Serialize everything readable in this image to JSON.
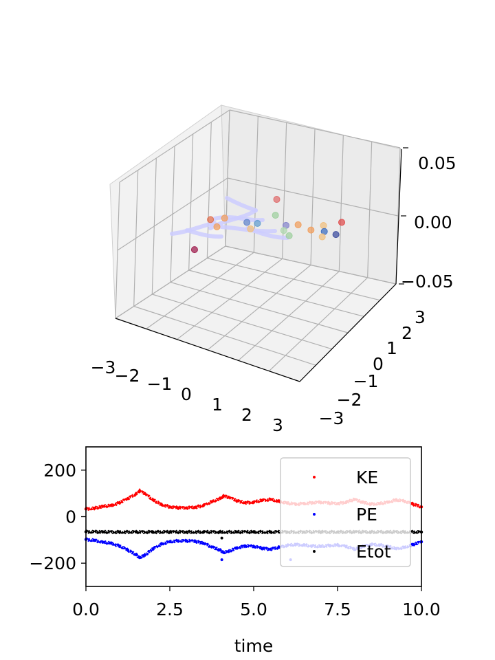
{
  "chart_data": [
    {
      "type": "scatter",
      "projection": "3d",
      "xlim": [
        -3,
        3
      ],
      "ylim": [
        -3,
        3
      ],
      "zlim": [
        -0.05,
        0.05
      ],
      "x_ticks": [
        "−3",
        "−2",
        "−1",
        "0",
        "1",
        "2",
        "3"
      ],
      "y_ticks": [
        "−3",
        "−2",
        "−1",
        "0",
        "1",
        "2",
        "3"
      ],
      "z_ticks": [
        "−0.05",
        "0.00",
        "0.05"
      ],
      "grid": true,
      "particles": [
        {
          "x": -1.9,
          "y": 0.3,
          "z": 0.0,
          "color": "#e07050"
        },
        {
          "x": -1.6,
          "y": 0.6,
          "z": 0.0,
          "color": "#f0a060"
        },
        {
          "x": -1.5,
          "y": 0.0,
          "z": 0.0,
          "color": "#f0a060"
        },
        {
          "x": -0.9,
          "y": 0.7,
          "z": 0.0,
          "color": "#6688cc"
        },
        {
          "x": -0.6,
          "y": 0.8,
          "z": 0.0,
          "color": "#66a0d0"
        },
        {
          "x": -0.6,
          "y": 0.4,
          "z": 0.0,
          "color": "#f0c080"
        },
        {
          "x": -0.9,
          "y": 2.4,
          "z": 0.0,
          "color": "#e07070"
        },
        {
          "x": -0.4,
          "y": 1.5,
          "z": 0.0,
          "color": "#a0d0a0"
        },
        {
          "x": 0.2,
          "y": 1.1,
          "z": 0.0,
          "color": "#8888cc"
        },
        {
          "x": 0.5,
          "y": 1.3,
          "z": 0.0,
          "color": "#f0a060"
        },
        {
          "x": 0.3,
          "y": 0.8,
          "z": 0.0,
          "color": "#b0d8b0"
        },
        {
          "x": 0.6,
          "y": 0.6,
          "z": 0.0,
          "color": "#a0d0a0"
        },
        {
          "x": 1.0,
          "y": 1.2,
          "z": 0.0,
          "color": "#f0a060"
        },
        {
          "x": 1.2,
          "y": 1.6,
          "z": 0.0,
          "color": "#f0c080"
        },
        {
          "x": 1.4,
          "y": 1.3,
          "z": 0.0,
          "color": "#4070c0"
        },
        {
          "x": 1.6,
          "y": 2.0,
          "z": 0.0,
          "color": "#e05050"
        },
        {
          "x": 1.8,
          "y": 1.3,
          "z": 0.0,
          "color": "#4050a0"
        },
        {
          "x": 1.5,
          "y": 1.0,
          "z": 0.0,
          "color": "#f0c080"
        },
        {
          "x": -1.3,
          "y": -1.6,
          "z": 0.0,
          "color": "#a02050"
        }
      ],
      "trails_color": "#ccccff"
    },
    {
      "type": "scatter",
      "xlabel": "time",
      "ylabel": "",
      "xlim": [
        0,
        10
      ],
      "ylim": [
        -300,
        300
      ],
      "x_ticks": [
        "0.0",
        "2.5",
        "5.0",
        "7.5",
        "10.0"
      ],
      "x_tick_values": [
        0,
        2.5,
        5.0,
        7.5,
        10.0
      ],
      "y_ticks": [
        "200",
        "0",
        "−200"
      ],
      "y_tick_values": [
        200,
        0,
        -200
      ],
      "legend_position": "upper-right",
      "series": [
        {
          "name": "KE",
          "color": "#ff0000",
          "x": [
            0,
            0.25,
            0.5,
            0.75,
            1.0,
            1.25,
            1.5,
            1.6,
            1.75,
            2.0,
            2.25,
            2.5,
            2.75,
            3.0,
            3.25,
            3.5,
            3.75,
            4.0,
            4.1,
            4.25,
            4.5,
            4.75,
            5.0,
            5.25,
            5.5,
            5.75,
            6.0,
            6.25,
            6.5,
            6.75,
            7.0,
            7.25,
            7.5,
            7.75,
            8.0,
            8.25,
            8.5,
            8.75,
            9.0,
            9.25,
            9.5,
            9.75,
            10.0
          ],
          "y": [
            33,
            36,
            44,
            48,
            60,
            78,
            98,
            110,
            100,
            72,
            52,
            42,
            38,
            38,
            40,
            48,
            64,
            78,
            88,
            84,
            68,
            60,
            62,
            70,
            74,
            66,
            58,
            54,
            56,
            60,
            62,
            58,
            56,
            62,
            74,
            62,
            54,
            56,
            62,
            72,
            66,
            54,
            42
          ]
        },
        {
          "name": "PE",
          "color": "#0000ff",
          "x": [
            0,
            0.25,
            0.5,
            0.75,
            1.0,
            1.25,
            1.5,
            1.6,
            1.75,
            2.0,
            2.25,
            2.5,
            2.75,
            3.0,
            3.25,
            3.5,
            3.75,
            4.0,
            4.1,
            4.25,
            4.5,
            4.75,
            5.0,
            5.25,
            5.5,
            5.75,
            6.0,
            6.25,
            6.5,
            6.75,
            7.0,
            7.25,
            7.5,
            7.75,
            8.0,
            8.25,
            8.5,
            8.75,
            9.0,
            9.25,
            9.5,
            9.75,
            10.0
          ],
          "y": [
            -98,
            -102,
            -110,
            -114,
            -126,
            -144,
            -164,
            -176,
            -166,
            -138,
            -118,
            -108,
            -104,
            -104,
            -106,
            -114,
            -130,
            -144,
            -154,
            -150,
            -134,
            -126,
            -128,
            -136,
            -140,
            -132,
            -124,
            -120,
            -122,
            -126,
            -128,
            -124,
            -122,
            -128,
            -140,
            -128,
            -120,
            -122,
            -128,
            -138,
            -132,
            -120,
            -108
          ]
        },
        {
          "name": "Etot",
          "color": "#000000",
          "x": [
            0,
            0.5,
            1.0,
            1.5,
            2.0,
            2.5,
            3.0,
            3.5,
            4.0,
            4.5,
            5.0,
            5.5,
            6.0,
            6.5,
            7.0,
            7.5,
            8.0,
            8.5,
            9.0,
            9.5,
            10.0
          ],
          "y": [
            -65,
            -66,
            -66,
            -66,
            -66,
            -66,
            -66,
            -66,
            -66,
            -66,
            -66,
            -66,
            -66,
            -66,
            -66,
            -66,
            -66,
            -66,
            -66,
            -66,
            -66
          ]
        }
      ],
      "outliers": [
        {
          "series": "Etot",
          "x": 4.05,
          "y": -92
        },
        {
          "series": "PE",
          "x": 4.05,
          "y": -185
        },
        {
          "series": "PE",
          "x": 6.1,
          "y": -185
        }
      ]
    }
  ]
}
